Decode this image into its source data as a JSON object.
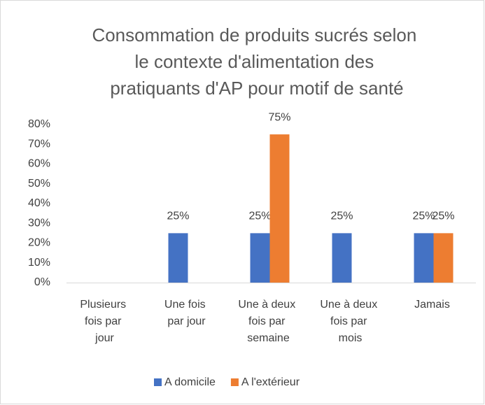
{
  "chart_data": {
    "type": "bar",
    "title": "Consommation de produits sucrés selon le contexte d'alimentation des pratiquants d'AP pour motif de santé",
    "categories": [
      "Plusieurs fois par jour",
      "Une fois par jour",
      "Une à deux fois par semaine",
      "Une à deux fois par mois",
      "Jamais"
    ],
    "series": [
      {
        "name": "A domicile",
        "color": "#4472c4",
        "values": [
          null,
          25,
          25,
          25,
          25
        ],
        "value_labels": [
          null,
          "25%",
          "25%",
          "25%",
          "25%"
        ]
      },
      {
        "name": "A l'extérieur",
        "color": "#ed7d31",
        "values": [
          null,
          null,
          75,
          null,
          25
        ],
        "value_labels": [
          null,
          null,
          "75%",
          null,
          "25%"
        ]
      }
    ],
    "ylim": [
      0,
      80
    ],
    "yticks": [
      {
        "value": 0,
        "label": "0%"
      },
      {
        "value": 10,
        "label": "10%"
      },
      {
        "value": 20,
        "label": "20%"
      },
      {
        "value": 30,
        "label": "30%"
      },
      {
        "value": 40,
        "label": "40%"
      },
      {
        "value": 50,
        "label": "50%"
      },
      {
        "value": 60,
        "label": "60%"
      },
      {
        "value": 70,
        "label": "70%"
      },
      {
        "value": 80,
        "label": "80%"
      }
    ],
    "grid": false,
    "legend": "bottom"
  }
}
